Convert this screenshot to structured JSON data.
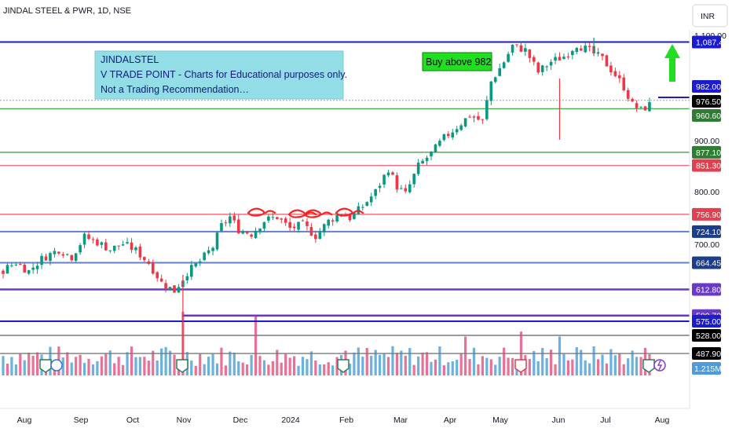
{
  "header": {
    "title": "JINDAL STEEL & PWR, 1D, NSE",
    "currency": "INR"
  },
  "note": {
    "lines": [
      "JINDALSTEL",
      "V TRADE POINT - Charts for Educational purposes only.",
      "Not a Trading Recommendation…"
    ],
    "bg": "#93dde6"
  },
  "buy_label": {
    "text": "Buy above 982",
    "bg": "#1ee01e"
  },
  "colors": {
    "up": "#089981",
    "down": "#f23645",
    "vol_up": "#5aa8dc",
    "vol_down": "#e8608a",
    "green_line": "#4caf50",
    "red_line": "#f26d7d",
    "blue_line": "#6480c8",
    "navy_line": "#1c1ccf",
    "purple_line": "#6a39c9",
    "gray_line": "#7a7a7a",
    "arrow": "#22dd22"
  },
  "chart_data": {
    "type": "candlestick",
    "symbol": "JINDALSTEL",
    "exchange": "NSE",
    "interval": "1D",
    "y_ticks": [
      "1,100.00",
      "900.00",
      "800.00",
      "700.00"
    ],
    "x_ticks": [
      "Aug",
      "Sep",
      "Oct",
      "Nov",
      "Dec",
      "2024",
      "Feb",
      "Mar",
      "Apr",
      "May",
      "Jun",
      "Jul",
      "Aug"
    ],
    "levels": [
      {
        "price": 1087.4,
        "label": "1,087.40",
        "style": "navy"
      },
      {
        "price": 982.0,
        "label": "982.00",
        "style": "navy"
      },
      {
        "price": 976.5,
        "label": "976.50",
        "style": "current"
      },
      {
        "price": 960.6,
        "label": "960.60",
        "style": "green"
      },
      {
        "price": 877.1,
        "label": "877.10",
        "style": "green"
      },
      {
        "price": 851.3,
        "label": "851.30",
        "style": "red"
      },
      {
        "price": 756.9,
        "label": "756.90",
        "style": "red"
      },
      {
        "price": 724.1,
        "label": "724.10",
        "style": "blue"
      },
      {
        "price": 664.45,
        "label": "664.45",
        "style": "blue"
      },
      {
        "price": 612.8,
        "label": "612.80",
        "style": "purple"
      },
      {
        "price": 580.7,
        "label": "580.70",
        "style": "purple"
      },
      {
        "price": 575.0,
        "label": "575.00",
        "style": "navy"
      },
      {
        "price": 528.0,
        "label": "528.00",
        "style": "black"
      },
      {
        "price": 487.9,
        "label": "487.90",
        "style": "black"
      }
    ],
    "volume_label": "1.215M",
    "price_path": [
      [
        0,
        650
      ],
      [
        3,
        665
      ],
      [
        6,
        648
      ],
      [
        9,
        672
      ],
      [
        13,
        690
      ],
      [
        16,
        676
      ],
      [
        19,
        714
      ],
      [
        22,
        704
      ],
      [
        25,
        690
      ],
      [
        28,
        701
      ],
      [
        31,
        688
      ],
      [
        34,
        664
      ],
      [
        37,
        626
      ],
      [
        40,
        610
      ],
      [
        43,
        646
      ],
      [
        46,
        667
      ],
      [
        49,
        695
      ],
      [
        51,
        735
      ],
      [
        53,
        752
      ],
      [
        55,
        728
      ],
      [
        58,
        720
      ],
      [
        61,
        745
      ],
      [
        64,
        752
      ],
      [
        67,
        730
      ],
      [
        70,
        737
      ],
      [
        73,
        716
      ],
      [
        76,
        744
      ],
      [
        79,
        760
      ],
      [
        81,
        750
      ],
      [
        84,
        772
      ],
      [
        87,
        800
      ],
      [
        90,
        845
      ],
      [
        92,
        810
      ],
      [
        94,
        795
      ],
      [
        97,
        850
      ],
      [
        100,
        875
      ],
      [
        103,
        905
      ],
      [
        106,
        926
      ],
      [
        109,
        948
      ],
      [
        112,
        936
      ],
      [
        114,
        1012
      ],
      [
        117,
        1050
      ],
      [
        119,
        1080
      ],
      [
        122,
        1072
      ],
      [
        125,
        1030
      ],
      [
        128,
        1050
      ],
      [
        131,
        1060
      ],
      [
        134,
        1083
      ],
      [
        137,
        1070
      ],
      [
        140,
        1055
      ],
      [
        143,
        1025
      ],
      [
        145,
        1002
      ],
      [
        147,
        968
      ],
      [
        149,
        958
      ],
      [
        151,
        968
      ]
    ],
    "up_color": "#089981",
    "down_color": "#f23645"
  }
}
